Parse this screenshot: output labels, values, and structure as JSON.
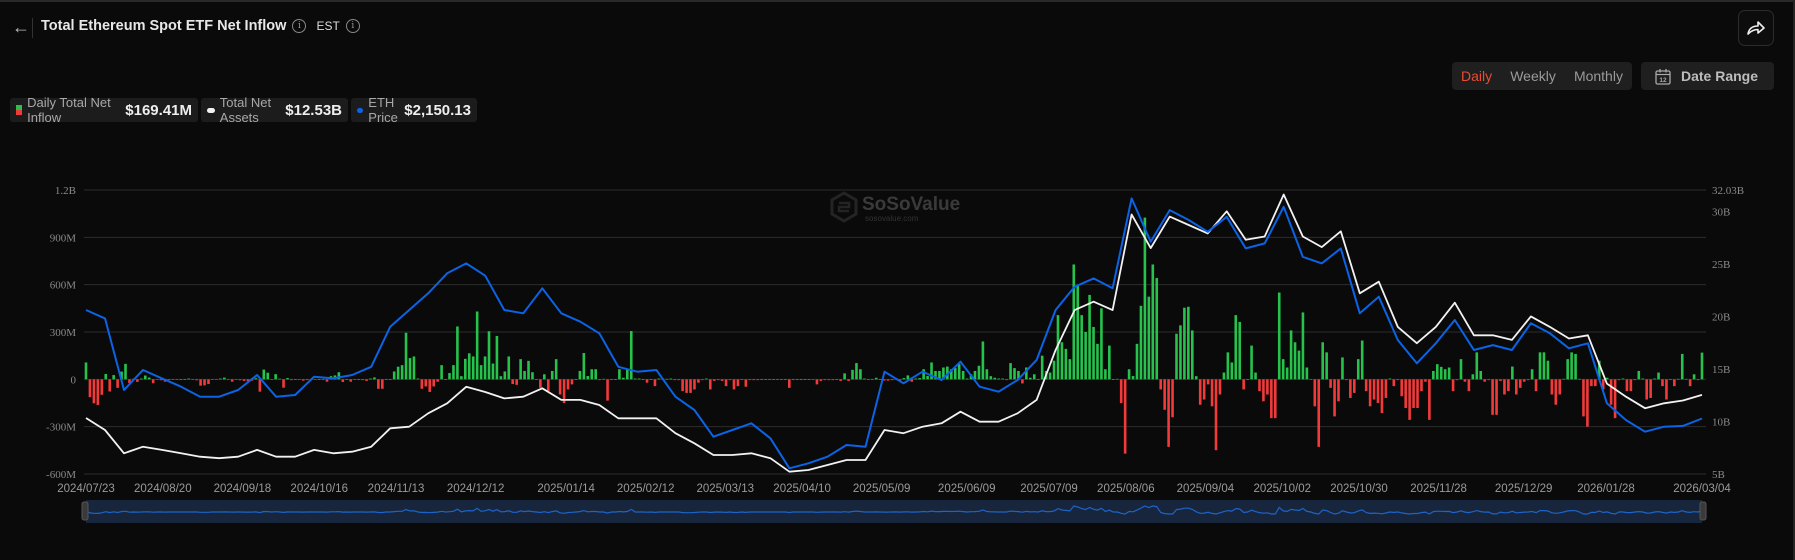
{
  "header": {
    "title": "Total Ethereum Spot ETF Net Inflow",
    "timezone": "EST",
    "back_icon": "arrow-left-icon",
    "info_icon": "info-circle-icon",
    "share_icon": "share-arrow-icon"
  },
  "controls": {
    "periods": [
      "Daily",
      "Weekly",
      "Monthly"
    ],
    "active_period": "Daily",
    "date_range_label": "Date Range",
    "calendar_icon_text": "12"
  },
  "legend": [
    {
      "label": "Daily Total Net Inflow",
      "value": "$169.41M"
    },
    {
      "label": "Total Net Assets",
      "value": "$12.53B"
    },
    {
      "label": "ETH Price",
      "value": "$2,150.13"
    }
  ],
  "watermark": {
    "brand": "SoSoValue",
    "site": "sosovalue.com"
  },
  "colors": {
    "inflow_positive": "#27c24c",
    "inflow_negative": "#f23a3a",
    "net_assets": "#f2f2f2",
    "eth_price": "#0b63e6",
    "accent": "#ef4a2f"
  },
  "chart_data": {
    "type": "bar+line",
    "title": "Total Ethereum Spot ETF Net Inflow",
    "x_range": [
      "2024/07/23",
      "2026/03/04"
    ],
    "x_ticks": [
      "2024/07/23",
      "2024/08/20",
      "2024/09/18",
      "2024/10/16",
      "2024/11/13",
      "2024/12/12",
      "2025/01/14",
      "2025/02/12",
      "2025/03/13",
      "2025/04/10",
      "2025/05/09",
      "2025/06/09",
      "2025/07/09",
      "2025/08/06",
      "2025/09/04",
      "2025/10/02",
      "2025/10/30",
      "2025/11/28",
      "2025/12/29",
      "2026/01/28",
      "2026/03/04"
    ],
    "left_axis": {
      "ticks": [
        "1.2B",
        "900M",
        "600M",
        "300M",
        "0",
        "-300M",
        "-600M"
      ],
      "tick_values_musd": [
        1200,
        900,
        600,
        300,
        0,
        -300,
        -600
      ],
      "range_musd": [
        -600,
        1200
      ]
    },
    "right_axis": {
      "ticks": [
        "32.03B",
        "30B",
        "25B",
        "20B",
        "15B",
        "10B",
        "5B"
      ],
      "tick_values_busd": [
        32.03,
        30,
        25,
        20,
        15,
        10,
        5
      ],
      "range_busd": [
        5,
        32.03
      ]
    },
    "price_axis_hidden_range_usd": [
      1470,
      4950
    ],
    "grid": true,
    "series": [
      {
        "name": "Daily Total Net Inflow",
        "type": "bar",
        "unit": "M USD",
        "sampling": "daily (trading days)",
        "values": [
          107,
          -113,
          -152,
          -163,
          -98,
          34,
          -77,
          27,
          -54,
          49,
          98,
          -24,
          3,
          -16,
          5,
          24,
          11,
          -25,
          -3,
          -6,
          -15,
          -5,
          -1,
          -3,
          0,
          0,
          5,
          -2,
          -6,
          -40,
          -38,
          -30,
          -2,
          -1,
          5,
          11,
          -3,
          -15,
          -1,
          -6,
          -10,
          -12,
          -8,
          7,
          -78,
          62,
          42,
          -2,
          33,
          4,
          -53,
          8,
          -5,
          2,
          -1,
          -8,
          1,
          -3,
          -1,
          0,
          2,
          -15,
          20,
          25,
          45,
          -17,
          2,
          -15,
          -2,
          1,
          -5,
          -10,
          5,
          12,
          -60,
          -60,
          0,
          0,
          50,
          80,
          90,
          295,
          135,
          145,
          5,
          -60,
          -45,
          -80,
          -45,
          -15,
          90,
          0,
          40,
          90,
          335,
          20,
          130,
          165,
          145,
          430,
          90,
          145,
          305,
          100,
          275,
          20,
          50,
          145,
          -30,
          -35,
          128,
          53,
          117,
          45,
          2,
          -54,
          32,
          -75,
          53,
          128,
          -96,
          -150,
          -64,
          -32,
          0,
          53,
          167,
          21,
          64,
          64,
          -5,
          3,
          -135,
          0,
          0,
          64,
          10,
          64,
          306,
          5,
          5,
          0,
          -21,
          0,
          -43,
          5,
          5,
          3,
          5,
          -5,
          -5,
          -75,
          -86,
          -86,
          -64,
          -21,
          -5,
          5,
          -64,
          -10,
          -5,
          -10,
          -43,
          -5,
          -64,
          -43,
          0,
          -47,
          -5,
          -5,
          -5,
          0,
          0,
          0,
          0,
          2,
          2,
          0,
          -54,
          0,
          0,
          0,
          0,
          0,
          -3,
          -32,
          -10,
          -5,
          -5,
          -5,
          0,
          -10,
          38,
          -10,
          60,
          103,
          64,
          5,
          0,
          2,
          10,
          0,
          -8,
          -8,
          -5,
          8,
          -10,
          8,
          25,
          -15,
          5,
          8,
          64,
          21,
          107,
          53,
          53,
          75,
          81,
          64,
          71,
          96,
          53,
          5,
          32,
          53,
          86,
          240,
          64,
          20,
          10,
          5,
          5,
          -5,
          103,
          71,
          53,
          -26,
          75,
          10,
          32,
          0,
          150,
          53,
          43,
          118,
          407,
          235,
          193,
          128,
          728,
          600,
          407,
          300,
          535,
          332,
          225,
          450,
          64,
          214,
          0,
          3,
          -150,
          -471,
          64,
          21,
          225,
          466,
          1025,
          524,
          728,
          642,
          -64,
          -193,
          -428,
          -240,
          289,
          342,
          454,
          460,
          310,
          20,
          -161,
          -128,
          -32,
          -171,
          -449,
          -96,
          43,
          171,
          107,
          407,
          364,
          -64,
          0,
          214,
          43,
          -75,
          -139,
          -96,
          -246,
          -246,
          550,
          128,
          75,
          310,
          235,
          182,
          424,
          75,
          -3,
          -171,
          -428,
          235,
          171,
          -54,
          -235,
          -139,
          139,
          -5,
          -118,
          -86,
          128,
          246,
          -75,
          -171,
          -128,
          -150,
          -214,
          -118,
          5,
          -43,
          -5,
          -107,
          -182,
          -257,
          -182,
          -182,
          -75,
          -15,
          -257,
          53,
          96,
          79,
          64,
          75,
          -75,
          -5,
          128,
          -15,
          -75,
          32,
          171,
          53,
          -15,
          -5,
          -225,
          -225,
          -10,
          -96,
          -75,
          81,
          -96,
          -54,
          -15,
          -5,
          64,
          -75,
          171,
          171,
          118,
          -96,
          -161,
          -96,
          3,
          128,
          171,
          161,
          3,
          -235,
          -300,
          -43,
          -43,
          118,
          -64,
          10,
          -161,
          -246,
          -5,
          5,
          -75,
          -75,
          -5,
          53,
          5,
          -128,
          -118,
          5,
          43,
          -43,
          -128,
          0,
          -43,
          3,
          161,
          3,
          -43,
          32,
          -5,
          169.41
        ]
      },
      {
        "name": "Total Net Assets",
        "type": "line",
        "unit": "B USD",
        "sampling": "weekly",
        "values": [
          10.33,
          9.19,
          6.97,
          7.6,
          7.29,
          6.97,
          6.65,
          6.5,
          6.65,
          7.29,
          6.65,
          6.65,
          7.29,
          6.97,
          7.12,
          7.6,
          9.35,
          9.5,
          10.78,
          11.73,
          13.3,
          12.8,
          12.2,
          12.36,
          13.16,
          12.05,
          12.05,
          11.57,
          10.3,
          10.3,
          10.3,
          8.88,
          7.92,
          6.81,
          6.81,
          6.97,
          6.5,
          5.22,
          5.38,
          5.86,
          6.33,
          6.33,
          9.19,
          8.88,
          9.5,
          9.83,
          10.93,
          9.98,
          9.98,
          10.78,
          12.05,
          16.8,
          20.6,
          21.4,
          20.6,
          29.7,
          26.5,
          29.5,
          28.7,
          27.9,
          30,
          27.3,
          27.6,
          31.6,
          27.6,
          26.6,
          28.1,
          22.2,
          23.3,
          19,
          17.45,
          19,
          21.3,
          18.2,
          18.2,
          17.76,
          20,
          19,
          17.9,
          18.2,
          13.6,
          12.36,
          11.26,
          11.73,
          12.0,
          12.53
        ]
      },
      {
        "name": "ETH Price",
        "type": "line",
        "unit": "USD",
        "sampling": "weekly",
        "values": [
          3480,
          3377,
          2499,
          2744,
          2642,
          2540,
          2417,
          2417,
          2499,
          2683,
          2417,
          2438,
          2662,
          2642,
          2683,
          2784,
          3274,
          3479,
          3684,
          3929,
          4051,
          3900,
          3479,
          3439,
          3745,
          3439,
          3336,
          3194,
          2784,
          2723,
          2744,
          2417,
          2254,
          1927,
          2009,
          2091,
          1907,
          1540,
          1601,
          1682,
          1825,
          1804,
          2723,
          2581,
          2723,
          2622,
          2846,
          2540,
          2478,
          2622,
          2867,
          3479,
          3764,
          3867,
          3745,
          4847,
          4316,
          4704,
          4582,
          4438,
          4622,
          4235,
          4296,
          4744,
          4132,
          4051,
          4235,
          3439,
          3642,
          3112,
          2826,
          3071,
          3357,
          2989,
          3050,
          2989,
          3316,
          3194,
          3010,
          3071,
          2336,
          2131,
          1988,
          2049,
          2060,
          2150.13
        ]
      }
    ]
  }
}
